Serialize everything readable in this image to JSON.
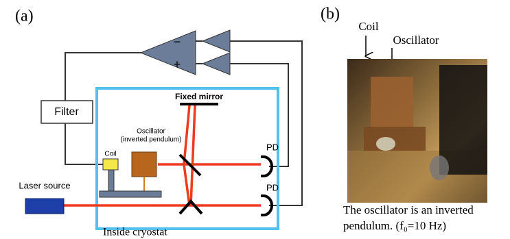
{
  "panel_a": {
    "label": "(a)",
    "filter": "Filter",
    "amp_minus": "−",
    "amp_plus": "+",
    "fixed_mirror": "Fixed mirror",
    "oscillator": "Oscillator",
    "oscillator_note": "(inverted pendulum)",
    "coil": "Coil",
    "pd_upper": "PD",
    "pd_lower": "PD",
    "laser_source": "Laser source",
    "cryostat": "Inside cryostat"
  },
  "panel_b": {
    "label": "(b)",
    "coil": "Coil",
    "oscillator": "Oscillator",
    "caption": [
      "The oscillator is an inverted",
      "pendulum. (f₀=10 Hz)"
    ]
  }
}
